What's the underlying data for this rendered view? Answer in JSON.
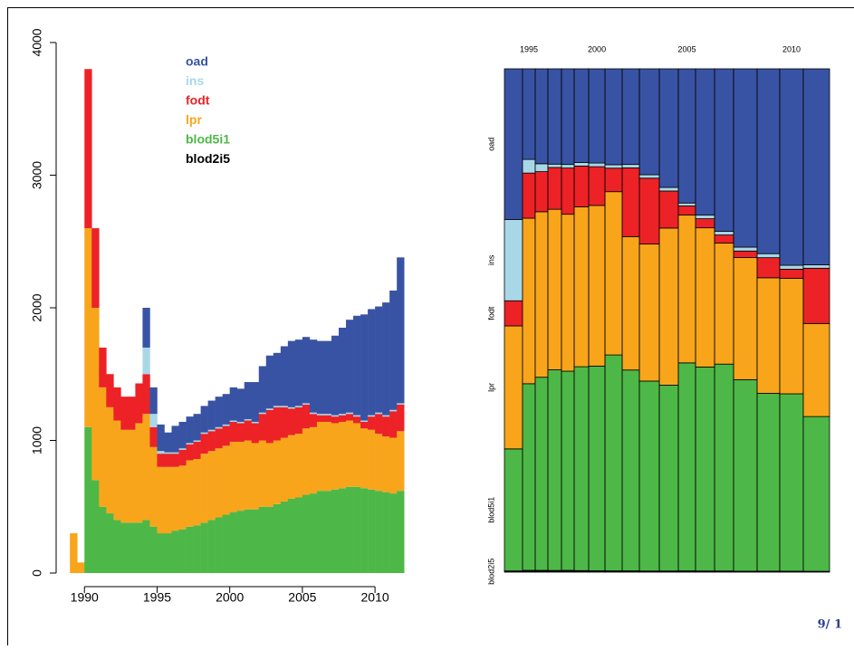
{
  "chart_data": [
    {
      "type": "stacked-bar",
      "x": [
        1989,
        1989.5,
        1990,
        1990.5,
        1991,
        1991.5,
        1992,
        1992.5,
        1993,
        1993.5,
        1994,
        1994.5,
        1995,
        1995.5,
        1996,
        1996.5,
        1997,
        1997.5,
        1998,
        1998.5,
        1999,
        1999.5,
        2000,
        2000.5,
        2001,
        2001.5,
        2002,
        2002.5,
        2003,
        2003.5,
        2004,
        2004.5,
        2005,
        2005.5,
        2006,
        2006.5,
        2007,
        2007.5,
        2008,
        2008.5,
        2009,
        2009.5,
        2010,
        2010.5,
        2011,
        2011.5
      ],
      "xlim": [
        1988.8,
        2012.3
      ],
      "ylim": [
        0,
        4150
      ],
      "xticks": [
        1990,
        1995,
        2000,
        2005,
        2010
      ],
      "yticks": [
        0,
        1000,
        2000,
        3000,
        4000
      ],
      "series": [
        {
          "name": "oad",
          "color": "#3953a4",
          "values": [
            0,
            0,
            0,
            0,
            0,
            0,
            0,
            0,
            0,
            0,
            300,
            200,
            200,
            150,
            200,
            200,
            200,
            200,
            200,
            220,
            230,
            230,
            250,
            250,
            280,
            300,
            350,
            400,
            400,
            450,
            500,
            500,
            500,
            550,
            550,
            550,
            600,
            650,
            700,
            750,
            800,
            800,
            800,
            850,
            900,
            1100
          ]
        },
        {
          "name": "ins",
          "color": "#a8d8e8",
          "values": [
            0,
            0,
            0,
            0,
            0,
            0,
            0,
            0,
            0,
            0,
            200,
            100,
            20,
            10,
            10,
            10,
            10,
            10,
            10,
            10,
            10,
            10,
            10,
            10,
            10,
            10,
            10,
            10,
            10,
            10,
            10,
            10,
            10,
            10,
            10,
            10,
            10,
            10,
            10,
            10,
            10,
            10,
            10,
            10,
            10,
            10
          ]
        },
        {
          "name": "fodt",
          "color": "#ec2227",
          "values": [
            0,
            0,
            1200,
            600,
            300,
            250,
            250,
            250,
            250,
            300,
            300,
            150,
            100,
            100,
            100,
            120,
            120,
            130,
            150,
            150,
            150,
            150,
            150,
            140,
            150,
            150,
            200,
            250,
            250,
            230,
            200,
            200,
            180,
            100,
            50,
            50,
            50,
            50,
            50,
            50,
            50,
            100,
            150,
            150,
            200,
            200
          ]
        },
        {
          "name": "lpr",
          "color": "#f8a51b",
          "values": [
            300,
            80,
            1500,
            1300,
            900,
            800,
            750,
            700,
            700,
            750,
            800,
            600,
            500,
            500,
            480,
            480,
            500,
            500,
            520,
            520,
            520,
            520,
            530,
            520,
            520,
            500,
            500,
            480,
            480,
            480,
            480,
            480,
            500,
            500,
            520,
            520,
            500,
            500,
            500,
            480,
            450,
            450,
            430,
            420,
            420,
            450
          ]
        },
        {
          "name": "blod5i1",
          "color": "#4db848",
          "values": [
            0,
            0,
            1100,
            700,
            500,
            450,
            400,
            380,
            380,
            380,
            400,
            350,
            300,
            300,
            320,
            330,
            350,
            360,
            380,
            400,
            420,
            440,
            460,
            470,
            480,
            480,
            500,
            500,
            520,
            540,
            560,
            570,
            590,
            600,
            620,
            620,
            630,
            640,
            650,
            650,
            640,
            630,
            620,
            610,
            600,
            620
          ]
        },
        {
          "name": "blod2i5",
          "color": "#000000",
          "values": [
            0,
            0,
            0,
            0,
            0,
            0,
            0,
            0,
            0,
            0,
            0,
            0,
            0,
            0,
            0,
            0,
            0,
            0,
            0,
            0,
            0,
            0,
            0,
            0,
            0,
            0,
            0,
            0,
            0,
            0,
            0,
            0,
            0,
            0,
            0,
            0,
            0,
            0,
            0,
            0,
            0,
            0,
            0,
            0,
            0,
            0
          ]
        }
      ]
    },
    {
      "type": "mosaic",
      "categories": [
        null,
        "1995",
        null,
        null,
        null,
        null,
        "2000",
        null,
        null,
        null,
        null,
        "2005",
        null,
        null,
        null,
        null,
        "2010",
        null
      ],
      "series": [
        {
          "name": "oad",
          "color": "#3953a4",
          "values": [
            600,
            253,
            265,
            285,
            267,
            299,
            338,
            363,
            362,
            464,
            496,
            508,
            612,
            680,
            923,
            920,
            1017,
            1131
          ]
        },
        {
          "name": "ins",
          "color": "#a8d8e8",
          "values": [
            324,
            38,
            22,
            10,
            10,
            11,
            13,
            13,
            13,
            15,
            15,
            11,
            15,
            15,
            20,
            20,
            20,
            20
          ]
        },
        {
          "name": "fodt",
          "color": "#ec2227",
          "values": [
            100,
            126,
            112,
            125,
            129,
            130,
            139,
            89,
            260,
            288,
            155,
            34,
            38,
            34,
            34,
            100,
            47,
            319
          ]
        },
        {
          "name": "lpr",
          "color": "#f8a51b",
          "values": [
            490,
            462,
            462,
            480,
            438,
            510,
            576,
            618,
            505,
            601,
            657,
            560,
            582,
            506,
            632,
            575,
            598,
            537
          ]
        },
        {
          "name": "blod5i1",
          "color": "#4db848",
          "values": [
            486,
            521,
            539,
            600,
            556,
            650,
            734,
            817,
            760,
            832,
            777,
            787,
            853,
            865,
            991,
            885,
            918,
            893
          ]
        },
        {
          "name": "blod2i5",
          "color": "#000000",
          "values": [
            5,
            5,
            5,
            5,
            5,
            5,
            5,
            5,
            5,
            5,
            5,
            5,
            5,
            5,
            5,
            5,
            5,
            5
          ]
        }
      ]
    }
  ],
  "page_number": "9/ 1"
}
